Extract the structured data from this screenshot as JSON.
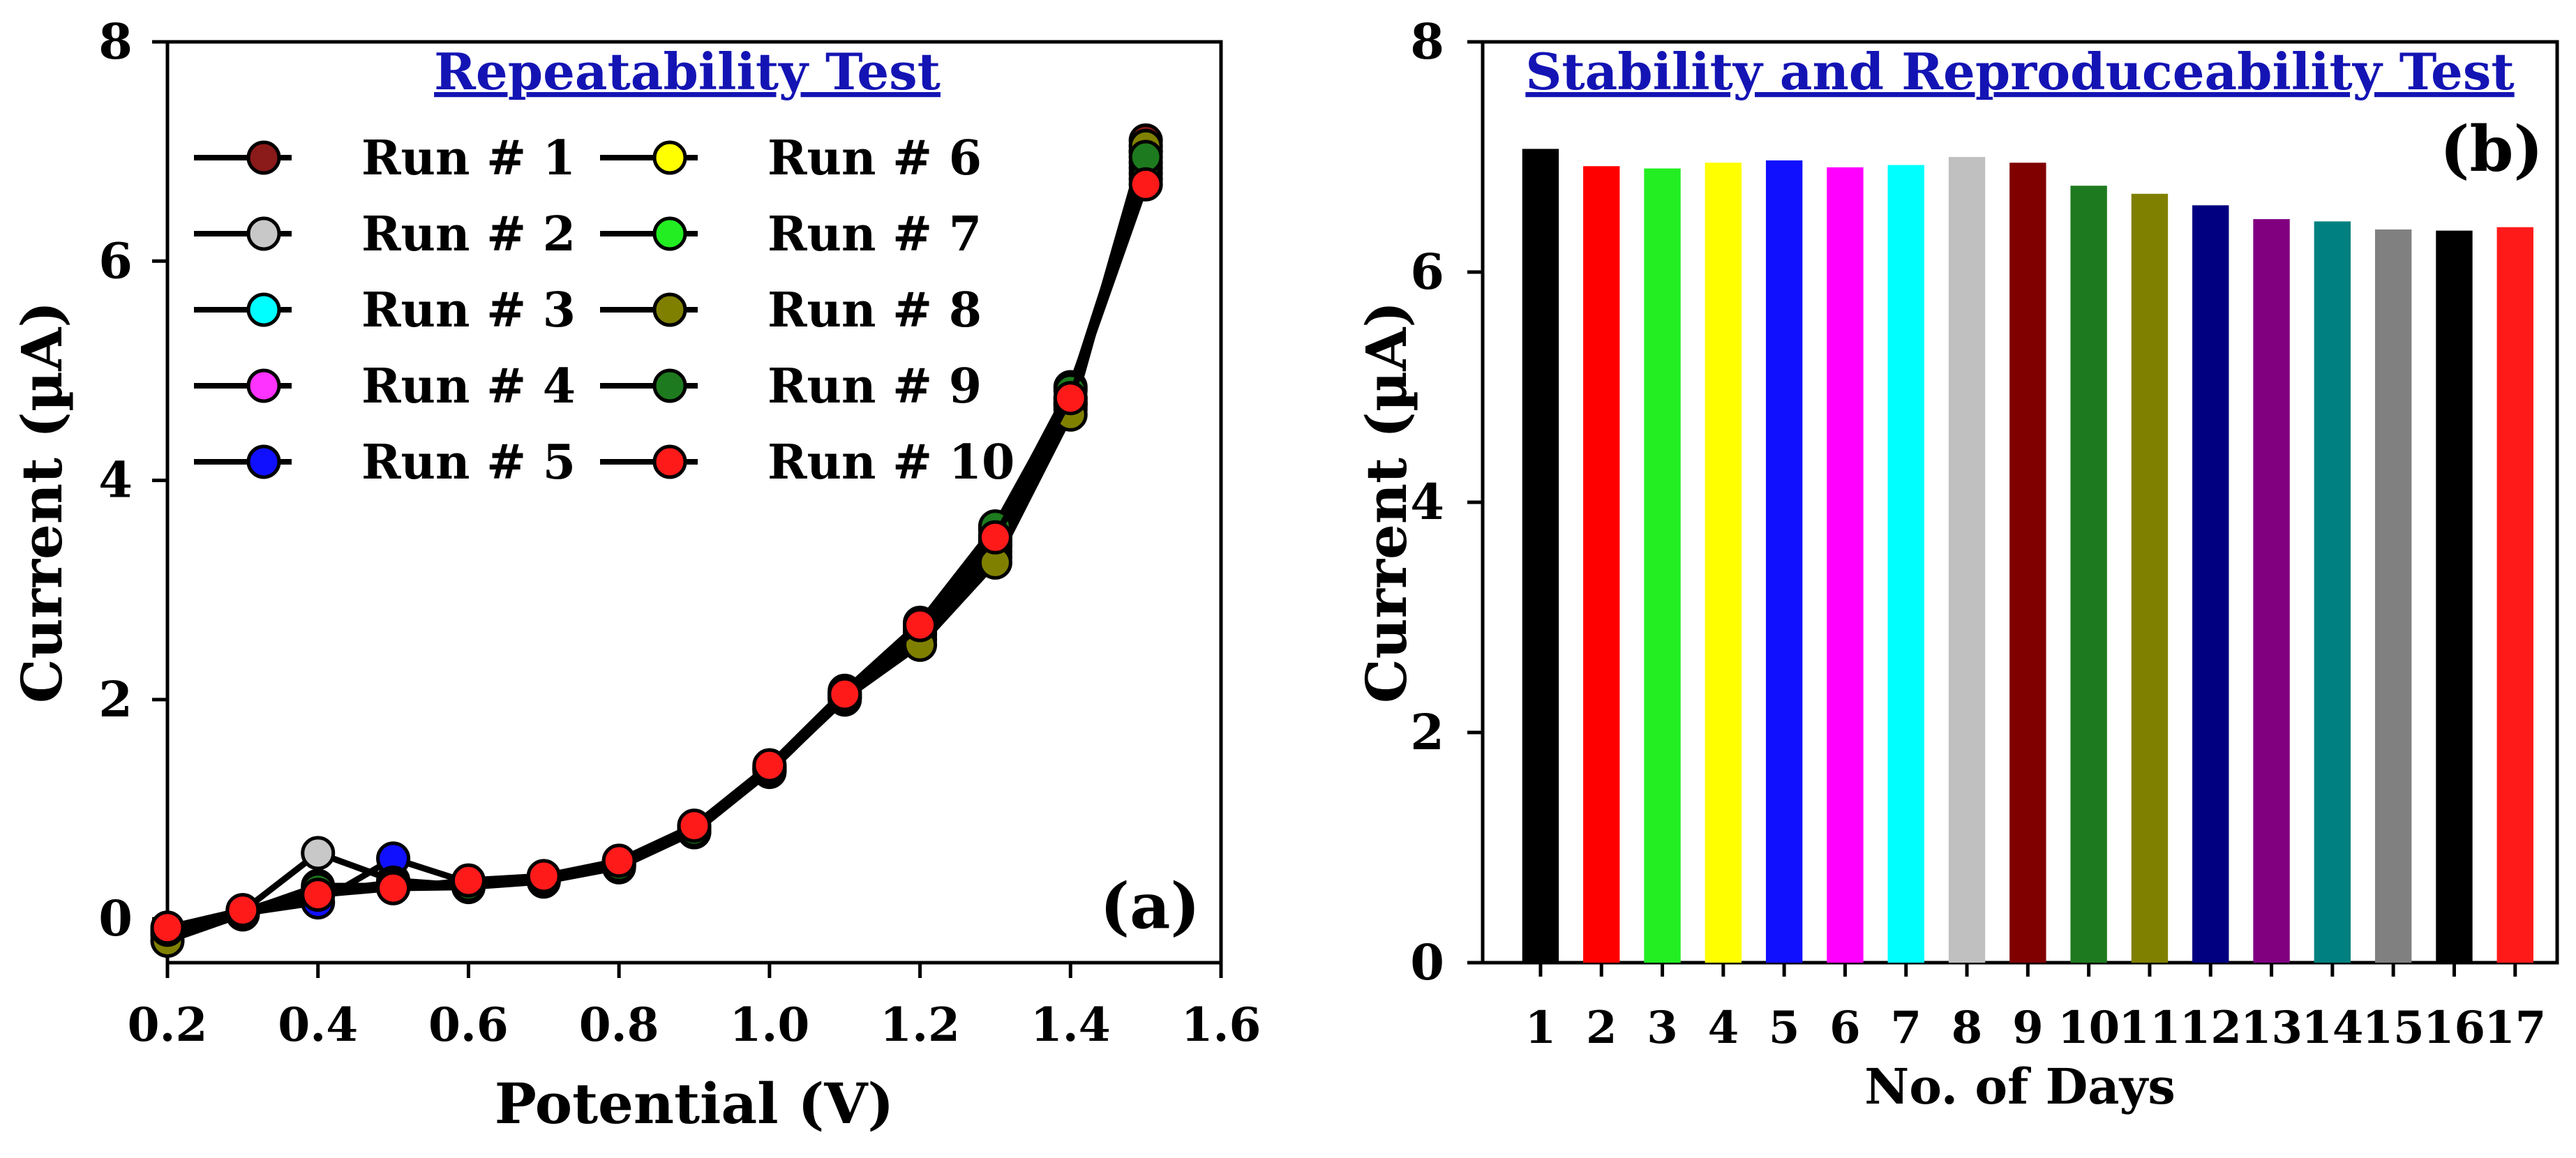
{
  "chart_data": [
    {
      "type": "line",
      "panel_label": "(a)",
      "title": "Repeatability Test",
      "xlabel": "Potential (V)",
      "ylabel": "Current (µA)",
      "xlim": [
        0.2,
        1.6
      ],
      "ylim": [
        -0.4,
        8
      ],
      "xticks": [
        0.2,
        0.4,
        0.6,
        0.8,
        1.0,
        1.2,
        1.4,
        1.6
      ],
      "xtick_labels": [
        "0.2",
        "0.4",
        "0.6",
        "0.8",
        "1.0",
        "1.2",
        "1.4",
        "1.6"
      ],
      "yticks": [
        0,
        2,
        4,
        6,
        8
      ],
      "ytick_labels": [
        "0",
        "2",
        "4",
        "6",
        "8"
      ],
      "legend_position": "top-left",
      "x": [
        0.2,
        0.3,
        0.4,
        0.5,
        0.6,
        0.7,
        0.8,
        0.9,
        1.0,
        1.1,
        1.2,
        1.3,
        1.4,
        1.5
      ],
      "series": [
        {
          "name": "Run # 1",
          "color": "#8b1a1a",
          "values": [
            -0.1,
            0.06,
            0.3,
            0.3,
            0.32,
            0.37,
            0.5,
            0.82,
            1.38,
            2.05,
            2.65,
            3.4,
            4.7,
            7.1
          ]
        },
        {
          "name": "Run # 2",
          "color": "#c8c8c8",
          "values": [
            -0.12,
            0.07,
            0.6,
            0.35,
            0.3,
            0.35,
            0.48,
            0.8,
            1.35,
            2.0,
            2.6,
            3.35,
            4.65,
            7.0
          ]
        },
        {
          "name": "Run # 3",
          "color": "#00ffff",
          "values": [
            -0.1,
            0.05,
            0.25,
            0.32,
            0.3,
            0.36,
            0.5,
            0.83,
            1.36,
            2.02,
            2.62,
            3.5,
            4.75,
            6.85
          ]
        },
        {
          "name": "Run # 4",
          "color": "#ff33ff",
          "values": [
            -0.15,
            0.06,
            0.22,
            0.3,
            0.31,
            0.37,
            0.49,
            0.81,
            1.37,
            2.03,
            2.6,
            3.45,
            4.7,
            6.9
          ]
        },
        {
          "name": "Run # 5",
          "color": "#1010ff",
          "values": [
            -0.1,
            0.05,
            0.15,
            0.55,
            0.33,
            0.36,
            0.5,
            0.8,
            1.36,
            2.04,
            2.63,
            3.42,
            4.72,
            6.8
          ]
        },
        {
          "name": "Run # 6",
          "color": "#ffff00",
          "values": [
            -0.12,
            0.06,
            0.25,
            0.33,
            0.3,
            0.38,
            0.51,
            0.82,
            1.38,
            2.06,
            2.55,
            3.3,
            4.68,
            7.0
          ]
        },
        {
          "name": "Run # 7",
          "color": "#22ee22",
          "values": [
            -0.1,
            0.07,
            0.28,
            0.3,
            0.32,
            0.37,
            0.52,
            0.84,
            1.4,
            2.08,
            2.7,
            3.55,
            4.85,
            6.75
          ]
        },
        {
          "name": "Run # 8",
          "color": "#808000",
          "values": [
            -0.2,
            0.04,
            0.26,
            0.28,
            0.29,
            0.34,
            0.47,
            0.79,
            1.34,
            2.01,
            2.5,
            3.25,
            4.6,
            7.05
          ]
        },
        {
          "name": "Run # 9",
          "color": "#1e7a1e",
          "values": [
            -0.1,
            0.06,
            0.27,
            0.31,
            0.31,
            0.36,
            0.49,
            0.81,
            1.37,
            2.02,
            2.7,
            3.58,
            4.82,
            6.95
          ]
        },
        {
          "name": "Run # 10",
          "color": "#ff1a1a",
          "values": [
            -0.08,
            0.08,
            0.22,
            0.28,
            0.35,
            0.39,
            0.53,
            0.85,
            1.4,
            2.05,
            2.68,
            3.48,
            4.75,
            6.7
          ]
        }
      ]
    },
    {
      "type": "bar",
      "panel_label": "(b)",
      "title": "Stability and Reproduceability Test",
      "xlabel": "No. of Days",
      "ylabel": "Current (µA)",
      "ylim": [
        0,
        8
      ],
      "yticks": [
        0,
        2,
        4,
        6,
        8
      ],
      "ytick_labels": [
        "0",
        "2",
        "4",
        "6",
        "8"
      ],
      "categories": [
        "1",
        "2",
        "3",
        "4",
        "5",
        "6",
        "7",
        "8",
        "9",
        "10",
        "11",
        "12",
        "13",
        "14",
        "15",
        "16",
        "17"
      ],
      "values": [
        7.07,
        6.92,
        6.9,
        6.95,
        6.97,
        6.91,
        6.93,
        7.0,
        6.95,
        6.75,
        6.68,
        6.58,
        6.46,
        6.44,
        6.37,
        6.36,
        6.39
      ],
      "colors": [
        "#000000",
        "#ff0000",
        "#22ee22",
        "#ffff00",
        "#1010ff",
        "#ff00ff",
        "#00ffff",
        "#c0c0c0",
        "#800000",
        "#1e7a1e",
        "#808000",
        "#000080",
        "#800080",
        "#008080",
        "#808080",
        "#000000",
        "#ff1a1a"
      ]
    }
  ]
}
